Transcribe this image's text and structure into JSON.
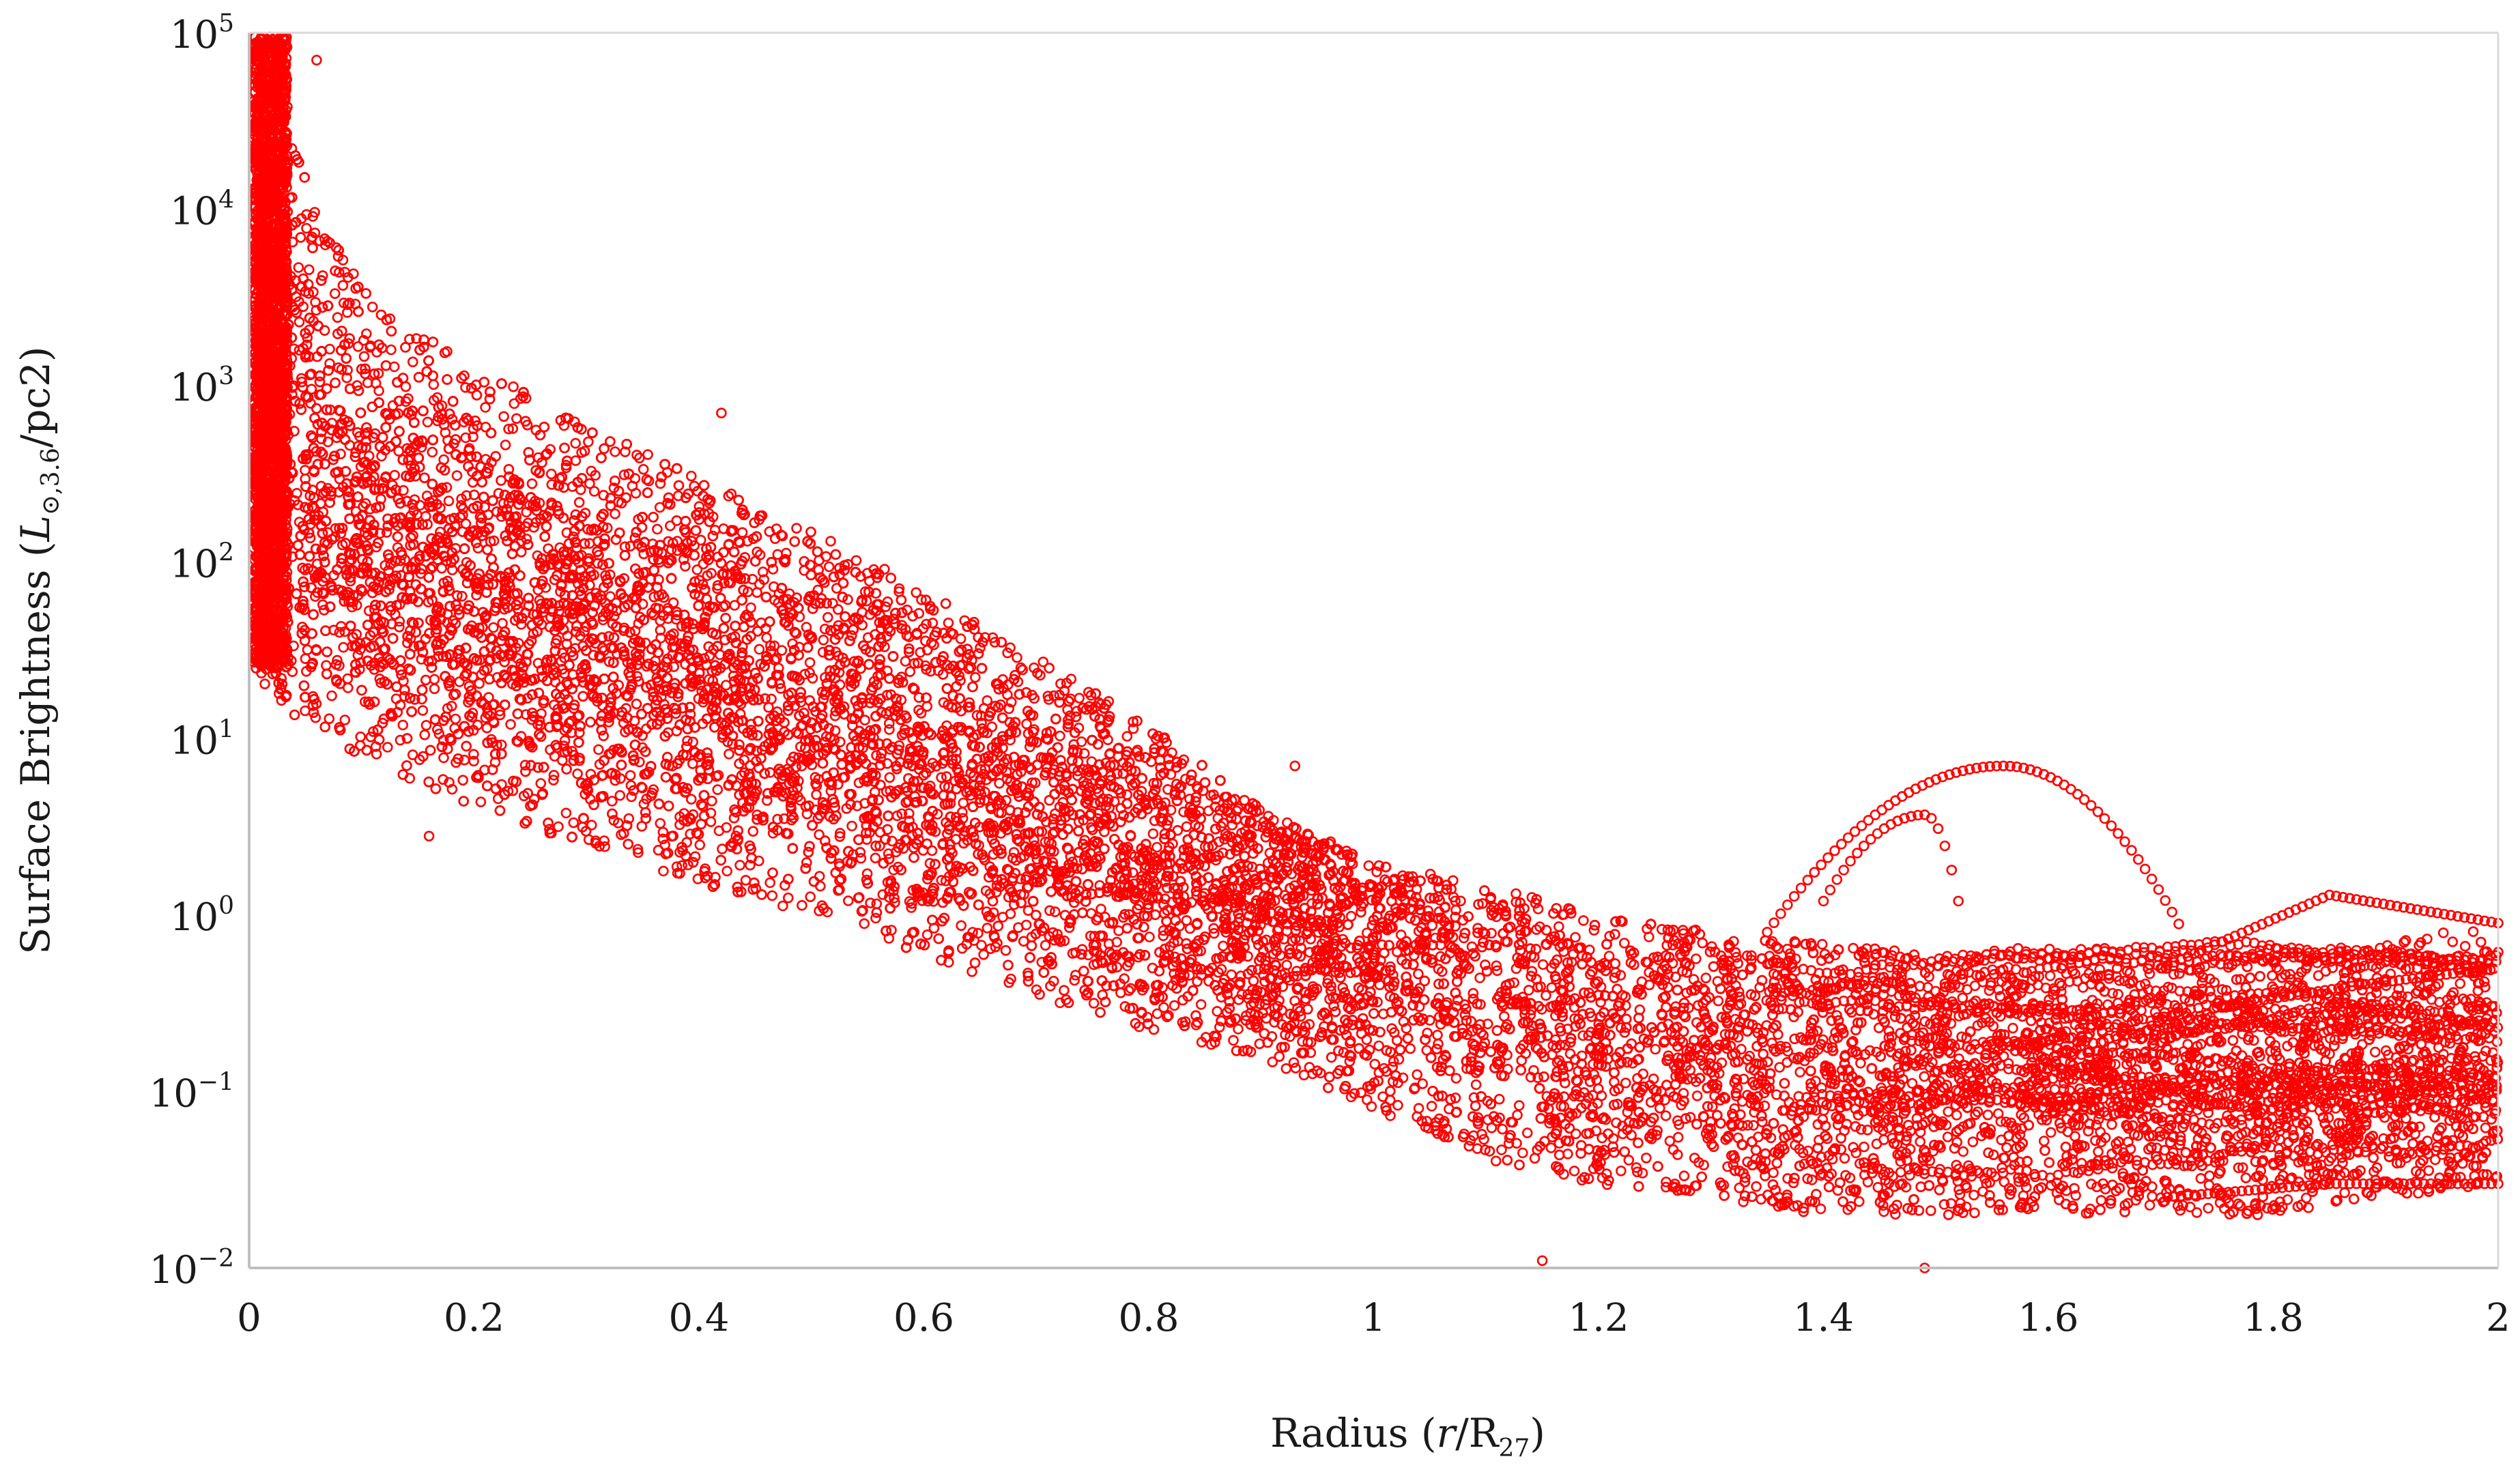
{
  "chart_data": {
    "type": "scatter",
    "title": "",
    "xlabel": {
      "prefix": "Radius (",
      "italic": "r",
      "slash": "/R",
      "sub": "27",
      "suffix": ")"
    },
    "ylabel": {
      "prefix": "Surface Brightness (",
      "italic": "L",
      "sub": "⊙,3.6",
      "suffix": "/pc2)"
    },
    "xlim": [
      0,
      2
    ],
    "ylim": [
      0.01,
      100000
    ],
    "yscale": "log",
    "x_ticks": [
      "0",
      "0.2",
      "0.4",
      "0.6",
      "0.8",
      "1",
      "1.2",
      "1.4",
      "1.6",
      "1.8",
      "2"
    ],
    "y_ticks": [
      {
        "base": "10",
        "exp": "5",
        "value": 100000
      },
      {
        "base": "10",
        "exp": "4",
        "value": 10000
      },
      {
        "base": "10",
        "exp": "3",
        "value": 1000
      },
      {
        "base": "10",
        "exp": "2",
        "value": 100
      },
      {
        "base": "10",
        "exp": "1",
        "value": 10
      },
      {
        "base": "10",
        "exp": "0",
        "value": 1
      },
      {
        "base": "10",
        "exp": "−1",
        "value": 0.1
      },
      {
        "base": "10",
        "exp": "−2",
        "value": 0.01
      }
    ],
    "grid": false,
    "legend": "none",
    "marker": "open-circle",
    "marker_color": "#ff0000",
    "series": [
      {
        "description_points_density_envelope": true,
        "envelope": [
          {
            "x": 0.005,
            "y_low": 20,
            "y_high": 90000,
            "y_mid": 800
          },
          {
            "x": 0.05,
            "y_low": 12,
            "y_high": 15000,
            "y_mid": 300
          },
          {
            "x": 0.1,
            "y_low": 8,
            "y_high": 3500,
            "y_mid": 150
          },
          {
            "x": 0.2,
            "y_low": 4,
            "y_high": 1300,
            "y_mid": 70
          },
          {
            "x": 0.3,
            "y_low": 2.5,
            "y_high": 600,
            "y_mid": 40
          },
          {
            "x": 0.4,
            "y_low": 1.5,
            "y_high": 300,
            "y_mid": 25
          },
          {
            "x": 0.5,
            "y_low": 1.0,
            "y_high": 150,
            "y_mid": 15
          },
          {
            "x": 0.6,
            "y_low": 0.6,
            "y_high": 70,
            "y_mid": 8
          },
          {
            "x": 0.7,
            "y_low": 0.35,
            "y_high": 30,
            "y_mid": 4
          },
          {
            "x": 0.8,
            "y_low": 0.22,
            "y_high": 12,
            "y_mid": 2
          },
          {
            "x": 0.9,
            "y_low": 0.15,
            "y_high": 4,
            "y_mid": 1.2
          },
          {
            "x": 1.0,
            "y_low": 0.08,
            "y_high": 2,
            "y_mid": 0.8
          },
          {
            "x": 1.1,
            "y_low": 0.04,
            "y_high": 1.5,
            "y_mid": 0.35
          },
          {
            "x": 1.2,
            "y_low": 0.03,
            "y_high": 1.0,
            "y_mid": 0.25
          },
          {
            "x": 1.3,
            "y_low": 0.025,
            "y_high": 0.8,
            "y_mid": 0.2
          },
          {
            "x": 1.4,
            "y_low": 0.02,
            "y_high": 0.7,
            "y_mid": 0.15
          },
          {
            "x": 1.5,
            "y_low": 0.02,
            "y_high": 0.6,
            "y_mid": 0.15
          },
          {
            "x": 1.6,
            "y_low": 0.02,
            "y_high": 0.5,
            "y_mid": 0.15
          },
          {
            "x": 1.7,
            "y_low": 0.02,
            "y_high": 0.5,
            "y_mid": 0.12
          },
          {
            "x": 1.8,
            "y_low": 0.02,
            "y_high": 0.6,
            "y_mid": 0.12
          },
          {
            "x": 1.9,
            "y_low": 0.025,
            "y_high": 0.7,
            "y_mid": 0.12
          },
          {
            "x": 2.0,
            "y_low": 0.03,
            "y_high": 0.9,
            "y_mid": 0.12
          }
        ],
        "notable_points": [
          {
            "x": 0.06,
            "y": 70000
          },
          {
            "x": 0.42,
            "y": 700
          },
          {
            "x": 0.16,
            "y": 2.8
          },
          {
            "x": 0.93,
            "y": 7
          },
          {
            "x": 1.15,
            "y": 0.011
          },
          {
            "x": 1.49,
            "y": 0.01
          }
        ],
        "arc_tracks": [
          {
            "from_x": 1.35,
            "to_x": 1.72,
            "peak_x": 1.56,
            "peak_y": 7.0,
            "end_y": 0.8
          },
          {
            "from_x": 1.4,
            "to_x": 1.52,
            "peak_x": 1.49,
            "peak_y": 3.7,
            "end_y": 1.2
          }
        ],
        "tail_tracks": [
          {
            "from_x": 1.7,
            "to_x": 2.0,
            "y": [
              0.5,
              1.3,
              0.9
            ]
          },
          {
            "from_x": 1.7,
            "to_x": 2.0,
            "y": [
              0.025,
              0.03,
              0.03
            ]
          },
          {
            "from_x": 1.75,
            "to_x": 2.0,
            "y": [
              0.3,
              0.4,
              0.5
            ]
          }
        ]
      }
    ]
  }
}
